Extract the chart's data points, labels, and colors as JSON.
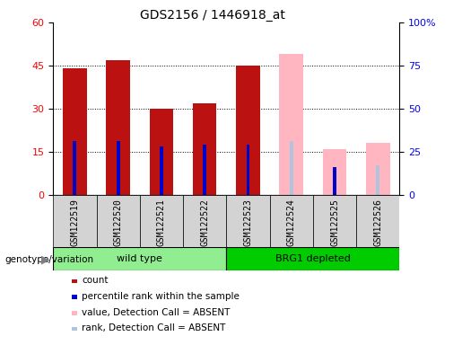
{
  "title": "GDS2156 / 1446918_at",
  "samples": [
    "GSM122519",
    "GSM122520",
    "GSM122521",
    "GSM122522",
    "GSM122523",
    "GSM122524",
    "GSM122525",
    "GSM122526"
  ],
  "count_values": [
    44,
    47,
    30,
    32,
    45,
    0,
    16,
    0
  ],
  "rank_values": [
    31,
    31,
    28,
    29,
    29,
    31,
    16,
    0
  ],
  "absent_value": [
    0,
    0,
    0,
    0,
    0,
    49,
    0,
    18
  ],
  "absent_rank": [
    0,
    0,
    0,
    0,
    0,
    0,
    0,
    17
  ],
  "is_absent_val": [
    false,
    false,
    false,
    false,
    false,
    true,
    false,
    true
  ],
  "is_absent_cnt": [
    false,
    false,
    false,
    false,
    false,
    true,
    true,
    true
  ],
  "groups": [
    {
      "label": "wild type",
      "start": 0,
      "end": 3,
      "color": "#90EE90"
    },
    {
      "label": "BRG1 depleted",
      "start": 4,
      "end": 7,
      "color": "#00CC00"
    }
  ],
  "ylim_left": [
    0,
    60
  ],
  "ylim_right": [
    0,
    100
  ],
  "yticks_left": [
    0,
    15,
    30,
    45,
    60
  ],
  "ytick_labels_left": [
    "0",
    "15",
    "30",
    "45",
    "60"
  ],
  "yticks_right": [
    0,
    25,
    50,
    75,
    100
  ],
  "ytick_labels_right": [
    "0",
    "25",
    "50",
    "75",
    "100%"
  ],
  "count_color": "#BB1111",
  "rank_color": "#0000CC",
  "absent_val_color": "#FFB6C1",
  "absent_rank_color": "#B0C4DE",
  "genotype_label": "genotype/variation",
  "legend_items": [
    {
      "color": "#BB1111",
      "label": "count"
    },
    {
      "color": "#0000CC",
      "label": "percentile rank within the sample"
    },
    {
      "color": "#FFB6C1",
      "label": "value, Detection Call = ABSENT"
    },
    {
      "color": "#B0C4DE",
      "label": "rank, Detection Call = ABSENT"
    }
  ]
}
